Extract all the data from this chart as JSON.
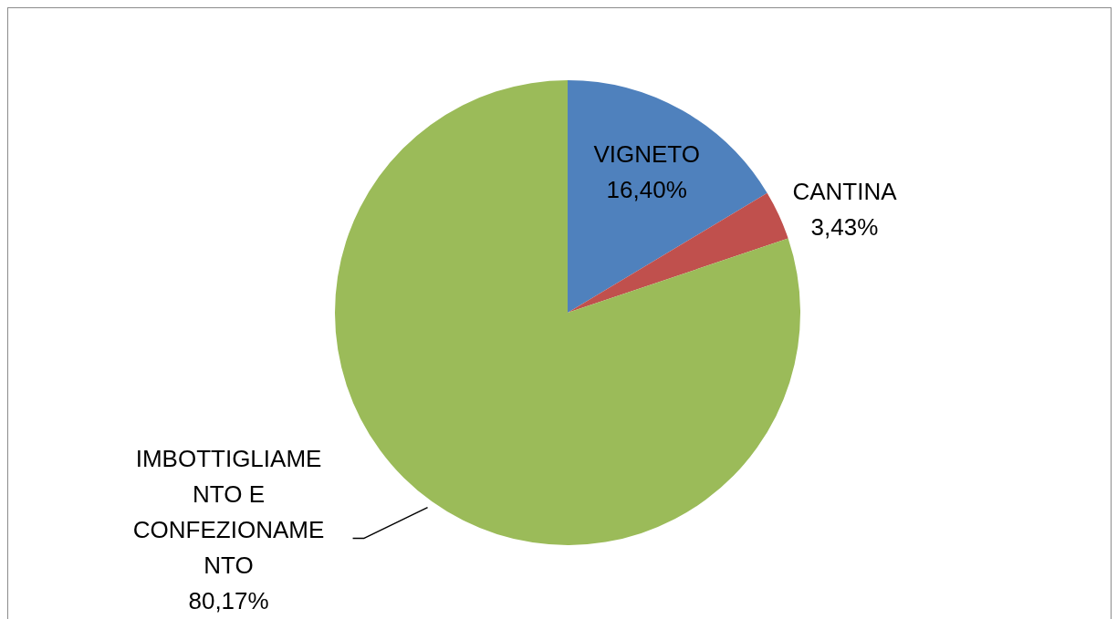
{
  "chart_data": {
    "type": "pie",
    "categories": [
      "VIGNETO",
      "CANTINA",
      "IMBOTTIGLIAMENTO E CONFEZIONAMENTO"
    ],
    "values": [
      16.4,
      3.43,
      80.17
    ],
    "colors": [
      "#4f81bd",
      "#c0504d",
      "#9bbb59"
    ],
    "value_labels": [
      "16,40%",
      "3,43%",
      "80,17%"
    ]
  }
}
